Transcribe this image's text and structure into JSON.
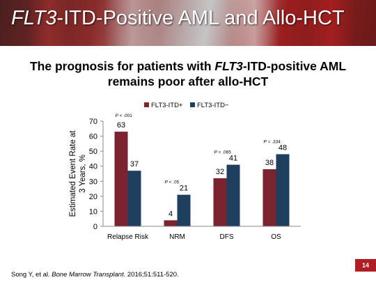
{
  "slide": {
    "title_italic": "FLT3",
    "title_rest": "-ITD-Positive AML and Allo-HCT",
    "subtitle_pre": "The prognosis for patients with ",
    "subtitle_italic": "FLT3",
    "subtitle_post": "-ITD-positive AML",
    "subtitle_line2": "remains poor after allo-HCT",
    "citation_pre": "Song Y, et al. ",
    "citation_journal": "Bone Marrow Transplant.",
    "citation_post": " 2016;51:511-520.",
    "page_number": "14"
  },
  "chart_data": {
    "type": "bar",
    "categories": [
      "Relapse Risk",
      "NRM",
      "DFS",
      "OS"
    ],
    "series": [
      {
        "name": "FLT3-ITD+",
        "values": [
          63,
          4,
          32,
          38
        ],
        "color": "#7b2430"
      },
      {
        "name": "FLT3-ITD−",
        "values": [
          37,
          21,
          41,
          48
        ],
        "color": "#1f3f5f"
      }
    ],
    "ylabel_line1": "Estimated Event Rate at",
    "ylabel_line2": "3 Years, %",
    "ylim": [
      0,
      70
    ],
    "yticks": [
      0,
      10,
      20,
      30,
      40,
      50,
      60,
      70
    ],
    "pvalues": [
      "P < .001",
      "P < .05",
      "P = .065",
      "P = .334"
    ],
    "legend_position": "top",
    "grid": false
  }
}
